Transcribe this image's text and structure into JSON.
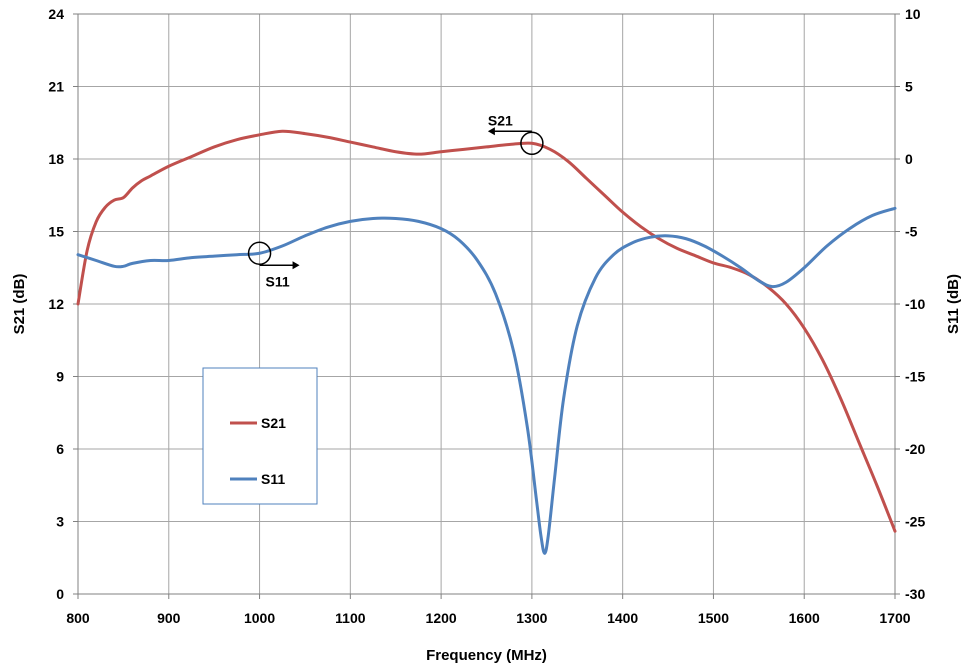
{
  "chart_data": {
    "type": "line",
    "title": "",
    "xlabel": "Frequency (MHz)",
    "ylabel_left": "S21 (dB)",
    "ylabel_right": "S11 (dB)",
    "xlim": [
      800,
      1700
    ],
    "ylim_left": [
      0,
      24
    ],
    "ylim_right": [
      -30,
      10
    ],
    "x_ticks": [
      "800",
      "900",
      "1000",
      "1100",
      "1200",
      "1300",
      "1400",
      "1500",
      "1600",
      "1700"
    ],
    "y_left_ticks": [
      "0",
      "3",
      "6",
      "9",
      "12",
      "15",
      "18",
      "21",
      "24"
    ],
    "y_right_ticks": [
      "-30",
      "-25",
      "-20",
      "-15",
      "-10",
      "-5",
      "0",
      "5",
      "10"
    ],
    "grid": true,
    "legend_placement": "lower-left",
    "series": [
      {
        "name": "S21",
        "axis": "left",
        "color": "#C0504D",
        "points": [
          [
            800,
            12.0
          ],
          [
            810,
            14.2
          ],
          [
            820,
            15.4
          ],
          [
            830,
            16.0
          ],
          [
            840,
            16.3
          ],
          [
            850,
            16.4
          ],
          [
            860,
            16.8
          ],
          [
            870,
            17.1
          ],
          [
            880,
            17.3
          ],
          [
            900,
            17.7
          ],
          [
            925,
            18.1
          ],
          [
            950,
            18.5
          ],
          [
            975,
            18.8
          ],
          [
            1000,
            19.0
          ],
          [
            1025,
            19.15
          ],
          [
            1050,
            19.05
          ],
          [
            1075,
            18.9
          ],
          [
            1100,
            18.7
          ],
          [
            1125,
            18.5
          ],
          [
            1150,
            18.3
          ],
          [
            1175,
            18.2
          ],
          [
            1200,
            18.3
          ],
          [
            1225,
            18.4
          ],
          [
            1250,
            18.5
          ],
          [
            1275,
            18.6
          ],
          [
            1300,
            18.65
          ],
          [
            1320,
            18.4
          ],
          [
            1340,
            17.9
          ],
          [
            1360,
            17.2
          ],
          [
            1380,
            16.5
          ],
          [
            1400,
            15.8
          ],
          [
            1420,
            15.2
          ],
          [
            1440,
            14.7
          ],
          [
            1460,
            14.3
          ],
          [
            1480,
            14.0
          ],
          [
            1500,
            13.7
          ],
          [
            1520,
            13.5
          ],
          [
            1540,
            13.2
          ],
          [
            1560,
            12.7
          ],
          [
            1580,
            12.0
          ],
          [
            1600,
            11.0
          ],
          [
            1620,
            9.7
          ],
          [
            1640,
            8.1
          ],
          [
            1660,
            6.3
          ],
          [
            1680,
            4.5
          ],
          [
            1700,
            2.6
          ]
        ]
      },
      {
        "name": "S11",
        "axis": "right",
        "color": "#4F81BD",
        "points": [
          [
            800,
            -6.6
          ],
          [
            820,
            -7.0
          ],
          [
            840,
            -7.4
          ],
          [
            850,
            -7.4
          ],
          [
            860,
            -7.2
          ],
          [
            880,
            -7.0
          ],
          [
            900,
            -7.0
          ],
          [
            925,
            -6.8
          ],
          [
            950,
            -6.7
          ],
          [
            975,
            -6.6
          ],
          [
            1000,
            -6.5
          ],
          [
            1025,
            -6.0
          ],
          [
            1050,
            -5.3
          ],
          [
            1075,
            -4.7
          ],
          [
            1100,
            -4.3
          ],
          [
            1125,
            -4.1
          ],
          [
            1150,
            -4.1
          ],
          [
            1175,
            -4.3
          ],
          [
            1200,
            -4.8
          ],
          [
            1220,
            -5.6
          ],
          [
            1240,
            -7.0
          ],
          [
            1260,
            -9.3
          ],
          [
            1280,
            -13.3
          ],
          [
            1295,
            -18.5
          ],
          [
            1305,
            -23.5
          ],
          [
            1310,
            -26.0
          ],
          [
            1314,
            -27.2
          ],
          [
            1318,
            -26.0
          ],
          [
            1325,
            -22.0
          ],
          [
            1335,
            -16.5
          ],
          [
            1350,
            -11.5
          ],
          [
            1370,
            -8.2
          ],
          [
            1390,
            -6.6
          ],
          [
            1410,
            -5.8
          ],
          [
            1430,
            -5.4
          ],
          [
            1450,
            -5.3
          ],
          [
            1470,
            -5.5
          ],
          [
            1490,
            -6.0
          ],
          [
            1510,
            -6.7
          ],
          [
            1530,
            -7.5
          ],
          [
            1550,
            -8.4
          ],
          [
            1565,
            -8.8
          ],
          [
            1580,
            -8.5
          ],
          [
            1600,
            -7.5
          ],
          [
            1625,
            -6.0
          ],
          [
            1650,
            -4.8
          ],
          [
            1675,
            -3.9
          ],
          [
            1700,
            -3.4
          ]
        ]
      }
    ],
    "annotations": [
      {
        "label": "S21",
        "x": 1300,
        "axis": "left",
        "y": 18.65,
        "arrow": "left"
      },
      {
        "label": "S11",
        "x": 1000,
        "axis": "right",
        "y": -6.5,
        "arrow": "right"
      }
    ]
  }
}
